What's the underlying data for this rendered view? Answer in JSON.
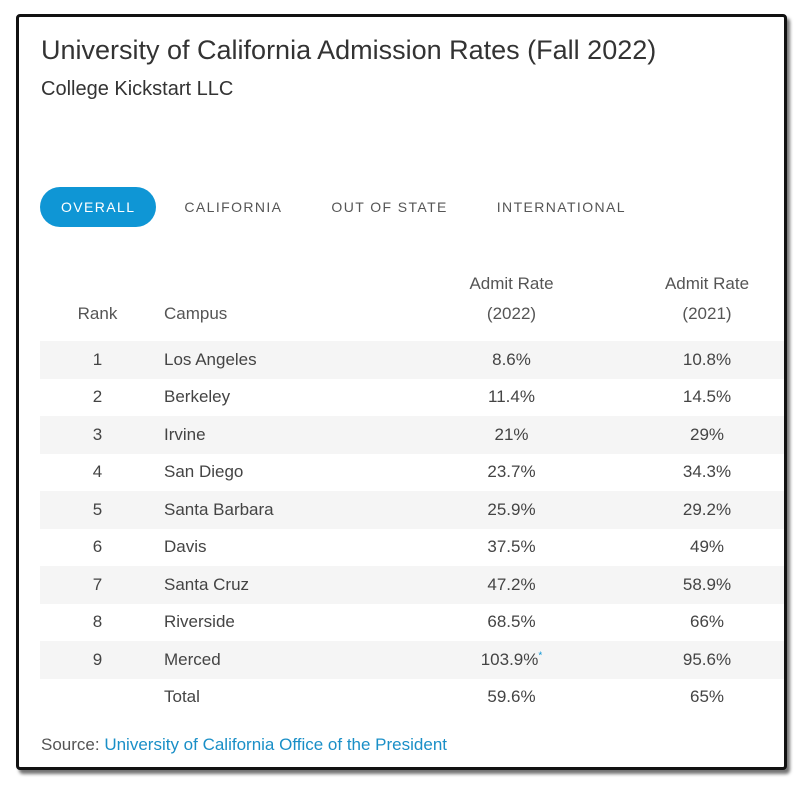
{
  "header": {
    "title": "University of California Admission Rates (Fall 2022)",
    "subtitle": "College Kickstart LLC"
  },
  "tabs": [
    {
      "label": "OVERALL",
      "active": true
    },
    {
      "label": "CALIFORNIA",
      "active": false
    },
    {
      "label": "OUT OF STATE",
      "active": false
    },
    {
      "label": "INTERNATIONAL",
      "active": false
    }
  ],
  "chart_data": {
    "type": "table",
    "columns": {
      "rank": "Rank",
      "campus": "Campus",
      "rate_2022_line1": "Admit Rate",
      "rate_2022_line2": "(2022)",
      "rate_2021_line1": "Admit Rate",
      "rate_2021_line2": "(2021)"
    },
    "rows": [
      {
        "rank": "1",
        "campus": "Los Angeles",
        "rate_2022": "8.6%",
        "rate_2021": "10.8%"
      },
      {
        "rank": "2",
        "campus": "Berkeley",
        "rate_2022": "11.4%",
        "rate_2021": "14.5%"
      },
      {
        "rank": "3",
        "campus": "Irvine",
        "rate_2022": "21%",
        "rate_2021": "29%"
      },
      {
        "rank": "4",
        "campus": "San Diego",
        "rate_2022": "23.7%",
        "rate_2021": "34.3%"
      },
      {
        "rank": "5",
        "campus": "Santa Barbara",
        "rate_2022": "25.9%",
        "rate_2021": "29.2%"
      },
      {
        "rank": "6",
        "campus": "Davis",
        "rate_2022": "37.5%",
        "rate_2021": "49%"
      },
      {
        "rank": "7",
        "campus": "Santa Cruz",
        "rate_2022": "47.2%",
        "rate_2021": "58.9%"
      },
      {
        "rank": "8",
        "campus": "Riverside",
        "rate_2022": "68.5%",
        "rate_2021": "66%"
      },
      {
        "rank": "9",
        "campus": "Merced",
        "rate_2022": "103.9%",
        "rate_2022_footnote": "*",
        "rate_2021": "95.6%"
      }
    ],
    "total": {
      "rank": "",
      "campus": "Total",
      "rate_2022": "59.6%",
      "rate_2021": "65%"
    }
  },
  "footer": {
    "source_label": "Source:",
    "source_link": "University of California Office of the President"
  },
  "colors": {
    "accent": "#0f96d5",
    "link": "#1a8fc7",
    "stripe": "#f5f5f5"
  }
}
